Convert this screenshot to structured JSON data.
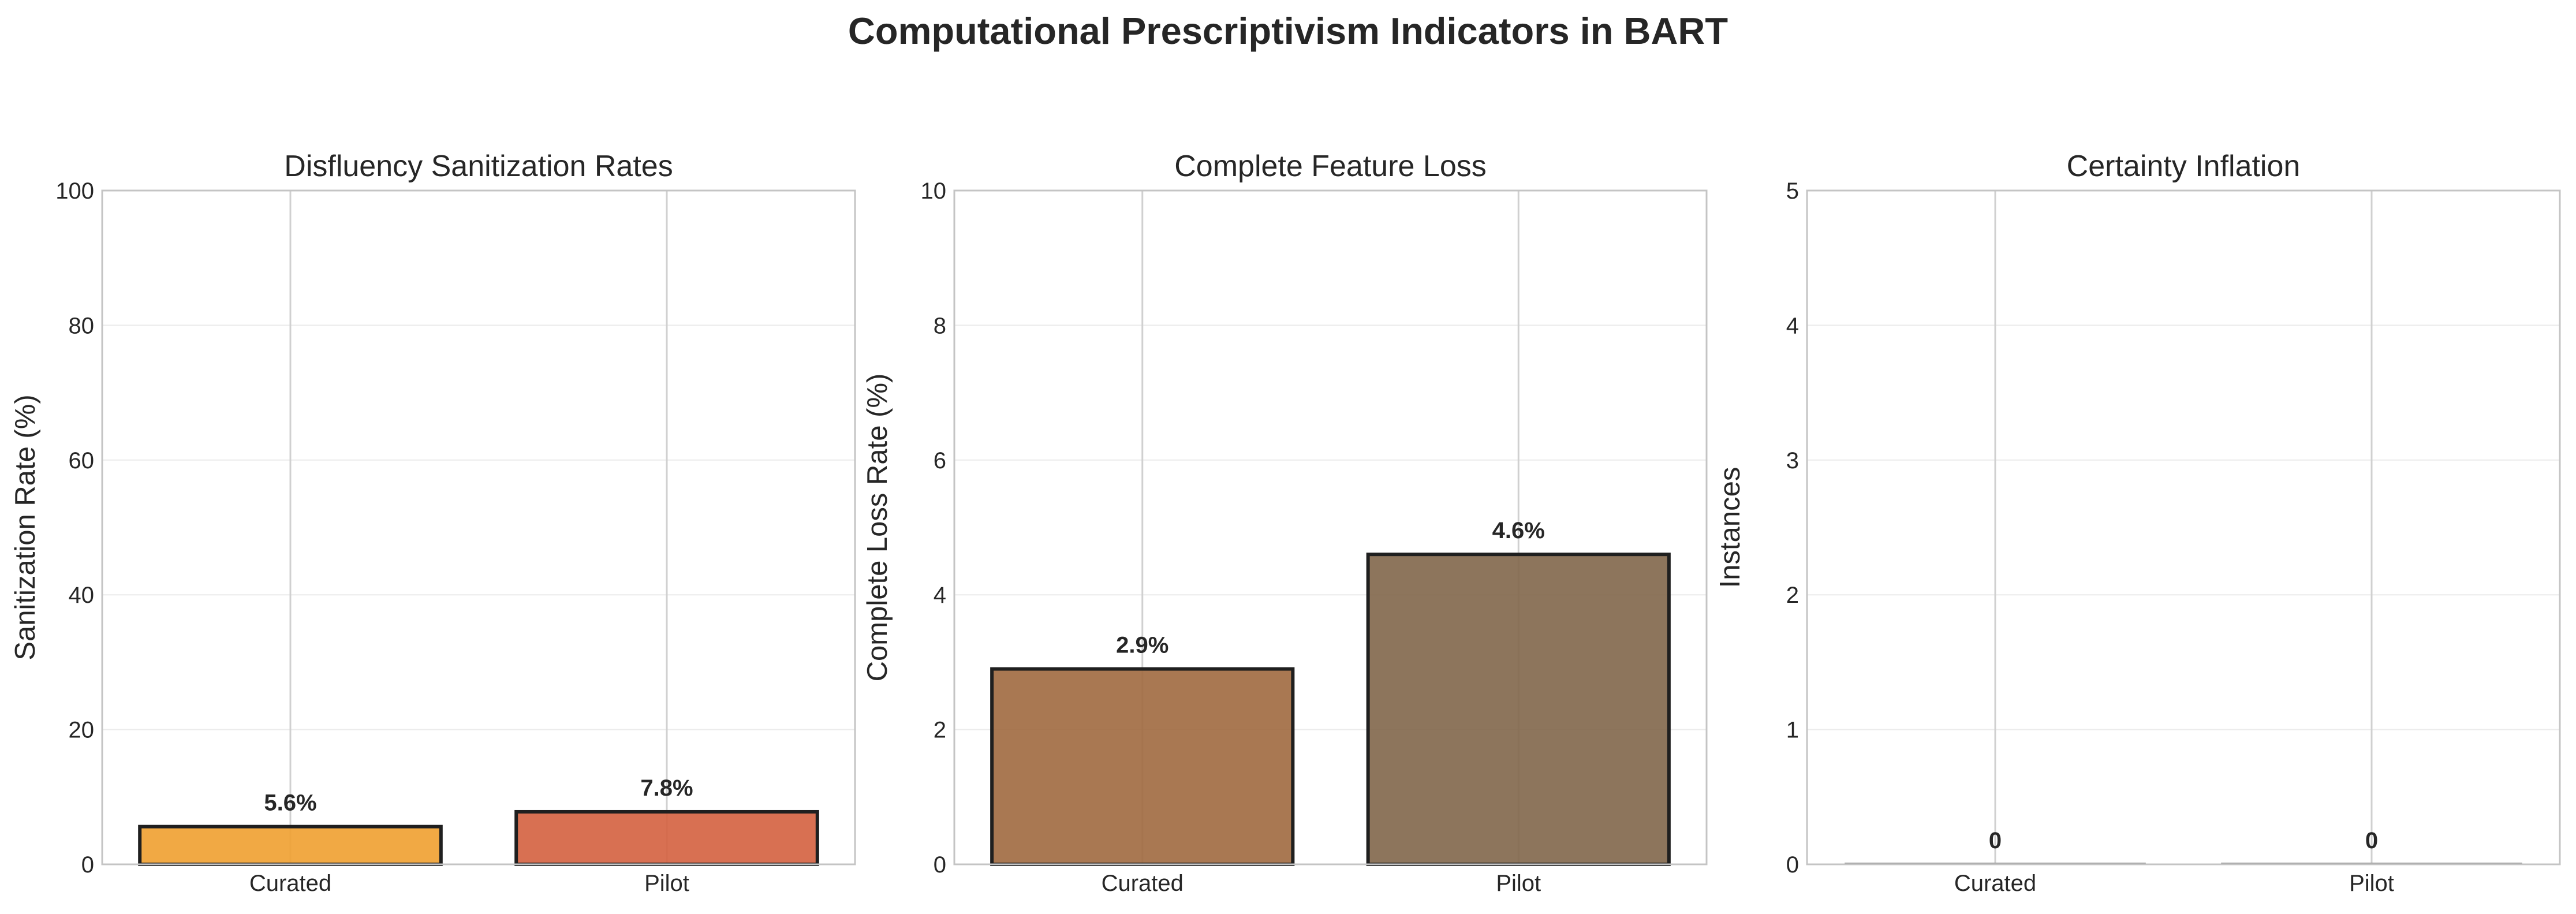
{
  "suptitle": "Computational Prescriptivism Indicators in BART",
  "chart_data": [
    {
      "type": "bar",
      "title": "Disfluency Sanitization Rates",
      "ylabel": "Sanitization Rate (%)",
      "categories": [
        "Curated",
        "Pilot"
      ],
      "values": [
        5.6,
        7.8
      ],
      "value_labels": [
        "5.6%",
        "7.8%"
      ],
      "colors": [
        "#f0a030",
        "#d4603f"
      ],
      "ylim": [
        0,
        100
      ],
      "yticks": [
        0,
        20,
        40,
        60,
        80,
        100
      ],
      "grid": true
    },
    {
      "type": "bar",
      "title": "Complete Feature Loss",
      "ylabel": "Complete Loss Rate (%)",
      "categories": [
        "Curated",
        "Pilot"
      ],
      "values": [
        2.9,
        4.6
      ],
      "value_labels": [
        "2.9%",
        "4.6%"
      ],
      "colors": [
        "#a0693f",
        "#81664a"
      ],
      "ylim": [
        0,
        10
      ],
      "yticks": [
        0,
        2,
        4,
        6,
        8,
        10
      ],
      "grid": true
    },
    {
      "type": "bar",
      "title": "Certainty Inflation",
      "ylabel": "Instances",
      "categories": [
        "Curated",
        "Pilot"
      ],
      "values": [
        0,
        0
      ],
      "value_labels": [
        "0",
        "0"
      ],
      "colors": [
        "#7a8fa8",
        "#7a8fa8"
      ],
      "ylim": [
        0,
        5
      ],
      "yticks": [
        0,
        1,
        2,
        3,
        4,
        5
      ],
      "grid": true
    }
  ]
}
